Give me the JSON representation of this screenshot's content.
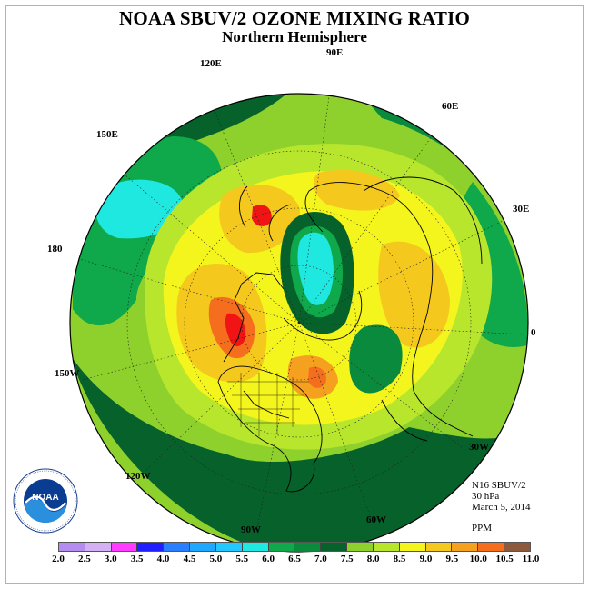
{
  "title": "NOAA SBUV/2 OZONE MIXING RATIO",
  "subtitle": "Northern Hemisphere",
  "longitude_labels": {
    "e90": "90E",
    "e120": "120E",
    "e60": "60E",
    "e150": "150E",
    "e30": "30E",
    "lon180": "180",
    "lon0": "0",
    "w150": "150W",
    "w30": "30W",
    "w120": "120W",
    "w60": "60W",
    "w90": "90W"
  },
  "info": {
    "instrument": "N16 SBUV/2",
    "level": "30 hPa",
    "date": "March 5, 2014",
    "units": "PPM"
  },
  "logo_text": "NOAA",
  "colorbar": {
    "ticks": [
      "2.0",
      "2.5",
      "3.0",
      "3.5",
      "4.0",
      "4.5",
      "5.0",
      "5.5",
      "6.0",
      "6.5",
      "7.0",
      "7.5",
      "8.0",
      "8.5",
      "9.0",
      "9.5",
      "10.0",
      "10.5",
      "11.0"
    ],
    "colors": [
      "#b58cf0",
      "#d6b0f5",
      "#ff3cff",
      "#1f1fff",
      "#2a7fff",
      "#1ea8ff",
      "#22c8ff",
      "#1fe8e0",
      "#0fa84a",
      "#0a8a3c",
      "#06622a",
      "#8fd12c",
      "#b8e62c",
      "#f5f51e",
      "#f5c81e",
      "#f5a01e",
      "#f56e1e",
      "#f01414",
      "#8c5a3c"
    ]
  },
  "chart_data": {
    "type": "polar-map",
    "projection": "north polar stereographic",
    "variable": "ozone mixing ratio",
    "units": "PPM",
    "level": "30 hPa",
    "date": "March 5, 2014",
    "value_range": [
      2.0,
      11.0
    ],
    "contour_interval": 0.5
  }
}
